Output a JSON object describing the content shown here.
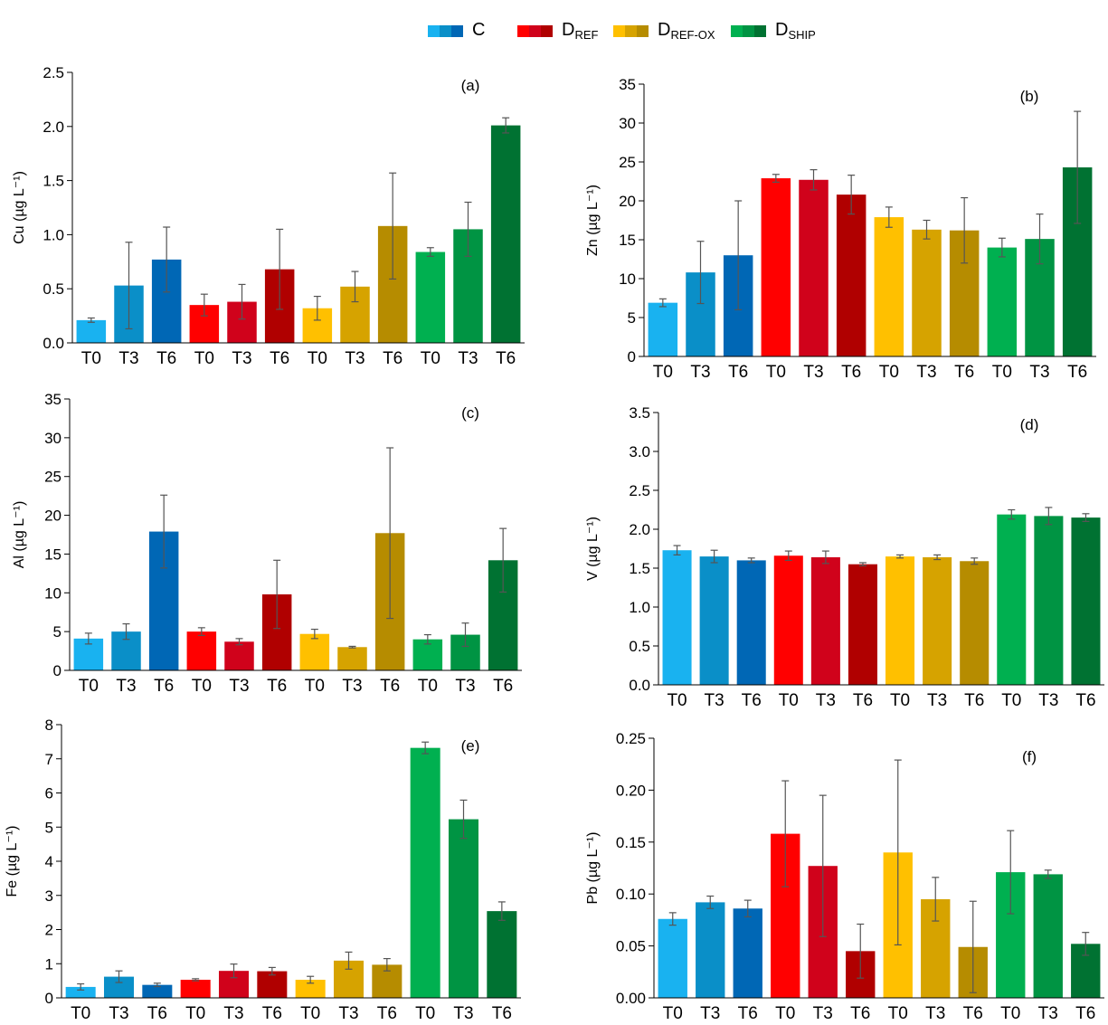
{
  "categories": [
    "T0",
    "T3",
    "T6",
    "T0",
    "T3",
    "T6",
    "T0",
    "T3",
    "T6",
    "T0",
    "T3",
    "T6"
  ],
  "bar_colors": [
    "#19b2f0",
    "#0a8fc8",
    "#0067b5",
    "#ff0000",
    "#d0021b",
    "#b00000",
    "#ffc000",
    "#d6a300",
    "#b68c00",
    "#00b050",
    "#009443",
    "#007232"
  ],
  "legend": [
    {
      "label": "C",
      "sub": "",
      "colors": [
        "#19b2f0",
        "#0a8fc8",
        "#0067b5"
      ]
    },
    {
      "label": "D",
      "sub": "REF",
      "colors": [
        "#ff0000",
        "#d0021b",
        "#b00000"
      ]
    },
    {
      "label": "D",
      "sub": "REF-OX",
      "colors": [
        "#ffc000",
        "#d6a300",
        "#b68c00"
      ]
    },
    {
      "label": "D",
      "sub": "SHIP",
      "colors": [
        "#00b050",
        "#009443",
        "#007232"
      ]
    }
  ],
  "chart_data": [
    {
      "type": "bar",
      "panel_label": "(a)",
      "ylabel": "Cu (µg L⁻¹)",
      "ylim": [
        0,
        2.5
      ],
      "yticks": [
        "0.0",
        "0.5",
        "1.0",
        "1.5",
        "2.0",
        "2.5"
      ],
      "values": [
        0.21,
        0.53,
        0.77,
        0.35,
        0.38,
        0.68,
        0.32,
        0.52,
        1.08,
        0.84,
        1.05,
        2.01
      ],
      "errors": [
        0.02,
        0.4,
        0.3,
        0.1,
        0.16,
        0.37,
        0.11,
        0.14,
        0.49,
        0.04,
        0.25,
        0.07
      ]
    },
    {
      "type": "bar",
      "panel_label": "(b)",
      "ylabel": "Zn (µg L⁻¹)",
      "ylim": [
        0,
        35
      ],
      "yticks": [
        "0",
        "5",
        "10",
        "15",
        "20",
        "25",
        "30",
        "35"
      ],
      "values": [
        6.9,
        10.8,
        13.0,
        22.9,
        22.7,
        20.8,
        17.9,
        16.3,
        16.2,
        14.0,
        15.1,
        24.3
      ],
      "errors": [
        0.5,
        4.0,
        7.0,
        0.5,
        1.3,
        2.5,
        1.3,
        1.2,
        4.2,
        1.2,
        3.2,
        7.2
      ]
    },
    {
      "type": "bar",
      "panel_label": "(c)",
      "ylabel": "Al (µg L⁻¹)",
      "ylim": [
        0,
        35
      ],
      "yticks": [
        "0",
        "5",
        "10",
        "15",
        "20",
        "25",
        "30",
        "35"
      ],
      "values": [
        4.1,
        5.0,
        17.9,
        5.0,
        3.7,
        9.8,
        4.7,
        3.0,
        17.7,
        4.0,
        4.6,
        14.2
      ],
      "errors": [
        0.7,
        1.0,
        4.7,
        0.5,
        0.4,
        4.4,
        0.6,
        0.1,
        11.0,
        0.6,
        1.5,
        4.1
      ]
    },
    {
      "type": "bar",
      "panel_label": "(d)",
      "ylabel": "V (µg L⁻¹)",
      "ylim": [
        0,
        3.5
      ],
      "yticks": [
        "0.0",
        "0.5",
        "1.0",
        "1.5",
        "2.0",
        "2.5",
        "3.0",
        "3.5"
      ],
      "values": [
        1.73,
        1.65,
        1.6,
        1.66,
        1.64,
        1.55,
        1.65,
        1.64,
        1.59,
        2.19,
        2.17,
        2.15
      ],
      "errors": [
        0.06,
        0.08,
        0.03,
        0.06,
        0.08,
        0.02,
        0.02,
        0.03,
        0.04,
        0.06,
        0.11,
        0.05
      ]
    },
    {
      "type": "bar",
      "panel_label": "(e)",
      "ylabel": "Fe (µg L⁻¹)",
      "ylim": [
        0,
        8
      ],
      "yticks": [
        "0",
        "1",
        "2",
        "3",
        "4",
        "5",
        "6",
        "7",
        "8"
      ],
      "values": [
        0.32,
        0.62,
        0.38,
        0.53,
        0.79,
        0.78,
        0.53,
        1.09,
        0.97,
        7.32,
        5.23,
        2.54
      ],
      "errors": [
        0.09,
        0.17,
        0.05,
        0.03,
        0.2,
        0.11,
        0.1,
        0.25,
        0.18,
        0.17,
        0.56,
        0.27
      ]
    },
    {
      "type": "bar",
      "panel_label": "(f)",
      "ylabel": "Pb (µg L⁻¹)",
      "ylim": [
        0,
        0.25
      ],
      "yticks": [
        "0.00",
        "0.05",
        "0.10",
        "0.15",
        "0.20",
        "0.25"
      ],
      "values": [
        0.076,
        0.092,
        0.086,
        0.158,
        0.127,
        0.045,
        0.14,
        0.095,
        0.049,
        0.121,
        0.119,
        0.052
      ],
      "errors": [
        0.006,
        0.006,
        0.008,
        0.051,
        0.068,
        0.026,
        0.089,
        0.021,
        0.044,
        0.04,
        0.004,
        0.011
      ]
    }
  ]
}
